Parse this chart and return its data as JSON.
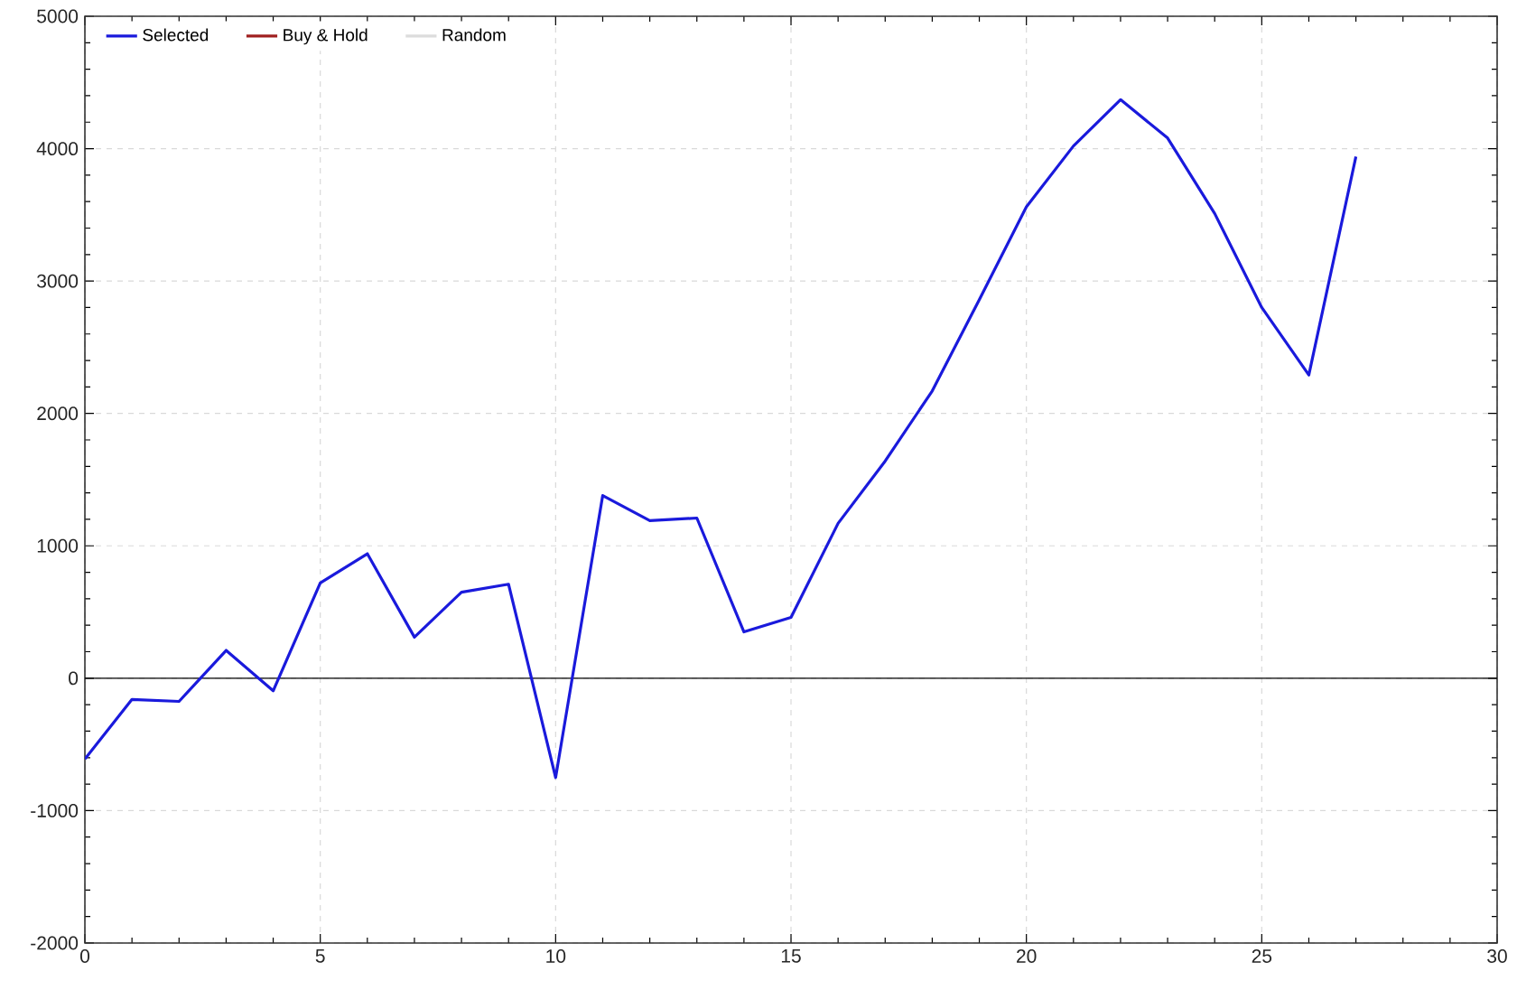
{
  "chart_data": {
    "type": "line",
    "x": [
      0,
      1,
      2,
      3,
      4,
      5,
      6,
      7,
      8,
      9,
      10,
      11,
      12,
      13,
      14,
      15,
      16,
      17,
      18,
      19,
      20,
      21,
      22,
      23,
      24,
      25,
      26,
      27
    ],
    "series": [
      {
        "name": "Selected",
        "color": "#1a1adc",
        "values": [
          -610,
          -160,
          -175,
          210,
          -95,
          720,
          940,
          310,
          650,
          710,
          -750,
          1380,
          1190,
          1210,
          350,
          460,
          1170,
          1640,
          2170,
          2860,
          3560,
          4020,
          4370,
          4080,
          3510,
          2800,
          2290,
          3940
        ]
      },
      {
        "name": "Buy & Hold",
        "color": "#a02020",
        "values": [
          null,
          null,
          null,
          null,
          null,
          null,
          null,
          null,
          null,
          null,
          null,
          null,
          null,
          null,
          null,
          null,
          null,
          null,
          null,
          null,
          null,
          null,
          null,
          null,
          null,
          null,
          null,
          null
        ]
      },
      {
        "name": "Random",
        "color": "#dcdcdc",
        "values": [
          null,
          null,
          null,
          null,
          null,
          null,
          null,
          null,
          null,
          null,
          null,
          null,
          null,
          null,
          null,
          null,
          null,
          null,
          null,
          null,
          null,
          null,
          null,
          null,
          null,
          null,
          null,
          null
        ]
      }
    ],
    "xlim": [
      0,
      30
    ],
    "xticks": [
      0,
      5,
      10,
      15,
      20,
      25,
      30
    ],
    "ylim": [
      -2000,
      5000
    ],
    "yticks": [
      -2000,
      -1000,
      0,
      1000,
      2000,
      3000,
      4000,
      5000
    ],
    "ref_lines": [
      {
        "axis": "y",
        "value": 0,
        "color": "#000000"
      }
    ],
    "grid": true,
    "legend": "top left",
    "marker": "none",
    "line_style": "solid"
  }
}
